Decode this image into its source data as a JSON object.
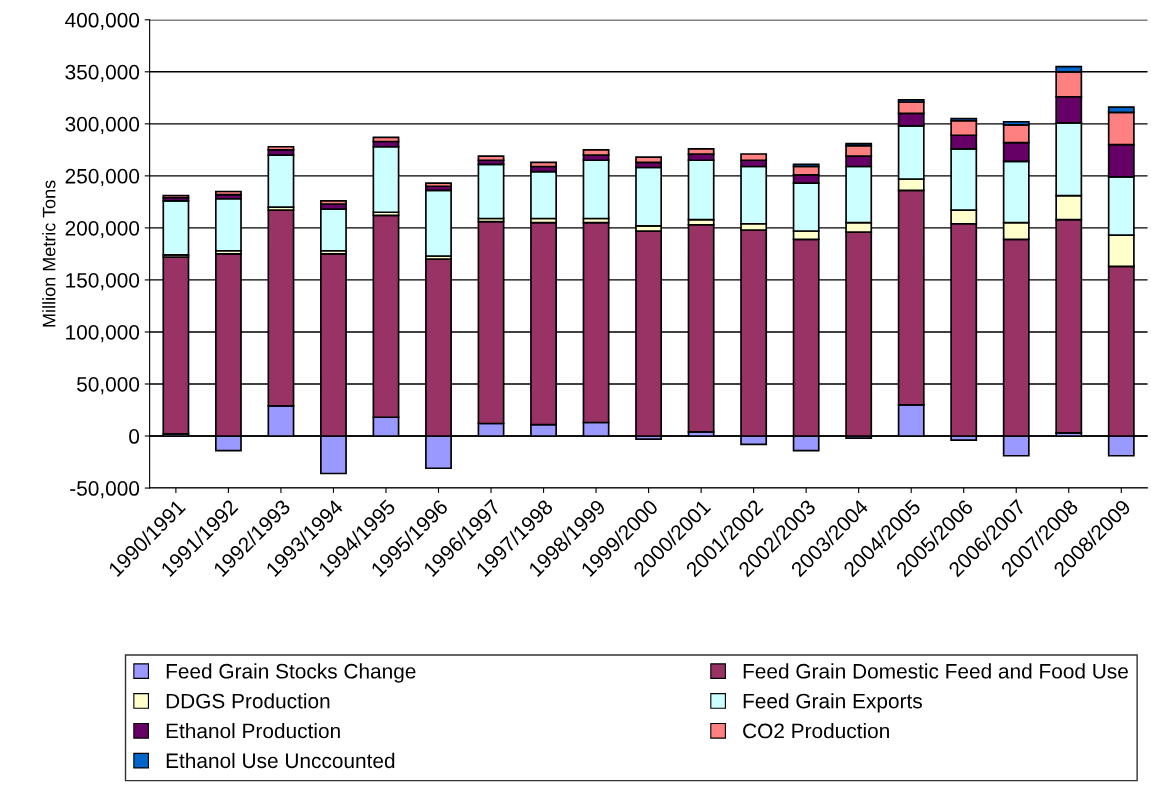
{
  "chart_data": {
    "type": "bar",
    "stacked": true,
    "ylabel": "Million Metric Tons",
    "categories": [
      "1990/1991",
      "1991/1992",
      "1992/1993",
      "1993/1994",
      "1994/1995",
      "1995/1996",
      "1996/1997",
      "1997/1998",
      "1998/1999",
      "1999/2000",
      "2000/2001",
      "2001/2002",
      "2002/2003",
      "2003/2004",
      "2004/2005",
      "2005/2006",
      "2006/2007",
      "2007/2008",
      "2008/2009"
    ],
    "series": [
      {
        "name": "Feed Grain Stocks Change",
        "color": "#9999ff",
        "values": [
          2000,
          -14000,
          29000,
          -36000,
          18000,
          -31000,
          12000,
          11000,
          13000,
          -3000,
          4000,
          -8000,
          -14000,
          -2000,
          30000,
          -4000,
          -19000,
          3000,
          -19000
        ]
      },
      {
        "name": "Feed Grain Domestic Feed and Food Use",
        "color": "#993366",
        "values": [
          170000,
          175000,
          188000,
          175000,
          194000,
          170000,
          194000,
          194000,
          192000,
          197000,
          199000,
          198000,
          189000,
          196000,
          206000,
          204000,
          189000,
          205000,
          163000
        ]
      },
      {
        "name": "DDGS Production",
        "color": "#ffffcc",
        "values": [
          2000,
          3000,
          3000,
          3000,
          3000,
          3000,
          3000,
          4000,
          4000,
          5000,
          5000,
          6000,
          8000,
          9000,
          11000,
          13000,
          16000,
          23000,
          30000
        ]
      },
      {
        "name": "Feed Grain Exports",
        "color": "#ccffff",
        "values": [
          52000,
          50000,
          50000,
          40000,
          63000,
          63000,
          52000,
          45000,
          56000,
          56000,
          57000,
          55000,
          46000,
          54000,
          51000,
          59000,
          59000,
          70000,
          56000
        ]
      },
      {
        "name": "Ethanol Production",
        "color": "#660066",
        "values": [
          3000,
          4000,
          5000,
          5000,
          5000,
          4000,
          4000,
          5000,
          5000,
          5000,
          6000,
          6000,
          8000,
          10000,
          12000,
          13000,
          18000,
          25000,
          31000
        ]
      },
      {
        "name": "CO2 Production",
        "color": "#ff8080",
        "values": [
          2000,
          3000,
          3000,
          3000,
          4000,
          3000,
          4000,
          4000,
          5000,
          5000,
          5000,
          6000,
          8000,
          10000,
          11000,
          14000,
          17000,
          24000,
          31000
        ]
      },
      {
        "name": "Ethanol Use Unccounted",
        "color": "#0066cc",
        "values": [
          null,
          null,
          null,
          null,
          null,
          null,
          null,
          null,
          null,
          null,
          null,
          null,
          2000,
          2000,
          2000,
          2000,
          3000,
          5000,
          5000
        ]
      }
    ],
    "ylim": [
      -50000,
      400000
    ],
    "yticks": [
      {
        "value": -50000,
        "label": "-50,000"
      },
      {
        "value": 0,
        "label": "0"
      },
      {
        "value": 50000,
        "label": "50,000"
      },
      {
        "value": 100000,
        "label": "100,000"
      },
      {
        "value": 150000,
        "label": "150,000"
      },
      {
        "value": 200000,
        "label": "200,000"
      },
      {
        "value": 250000,
        "label": "250,000"
      },
      {
        "value": 300000,
        "label": "300,000"
      },
      {
        "value": 350000,
        "label": "350,000"
      },
      {
        "value": 400000,
        "label": "400,000"
      }
    ],
    "grid": "y",
    "legend": "bottom"
  }
}
